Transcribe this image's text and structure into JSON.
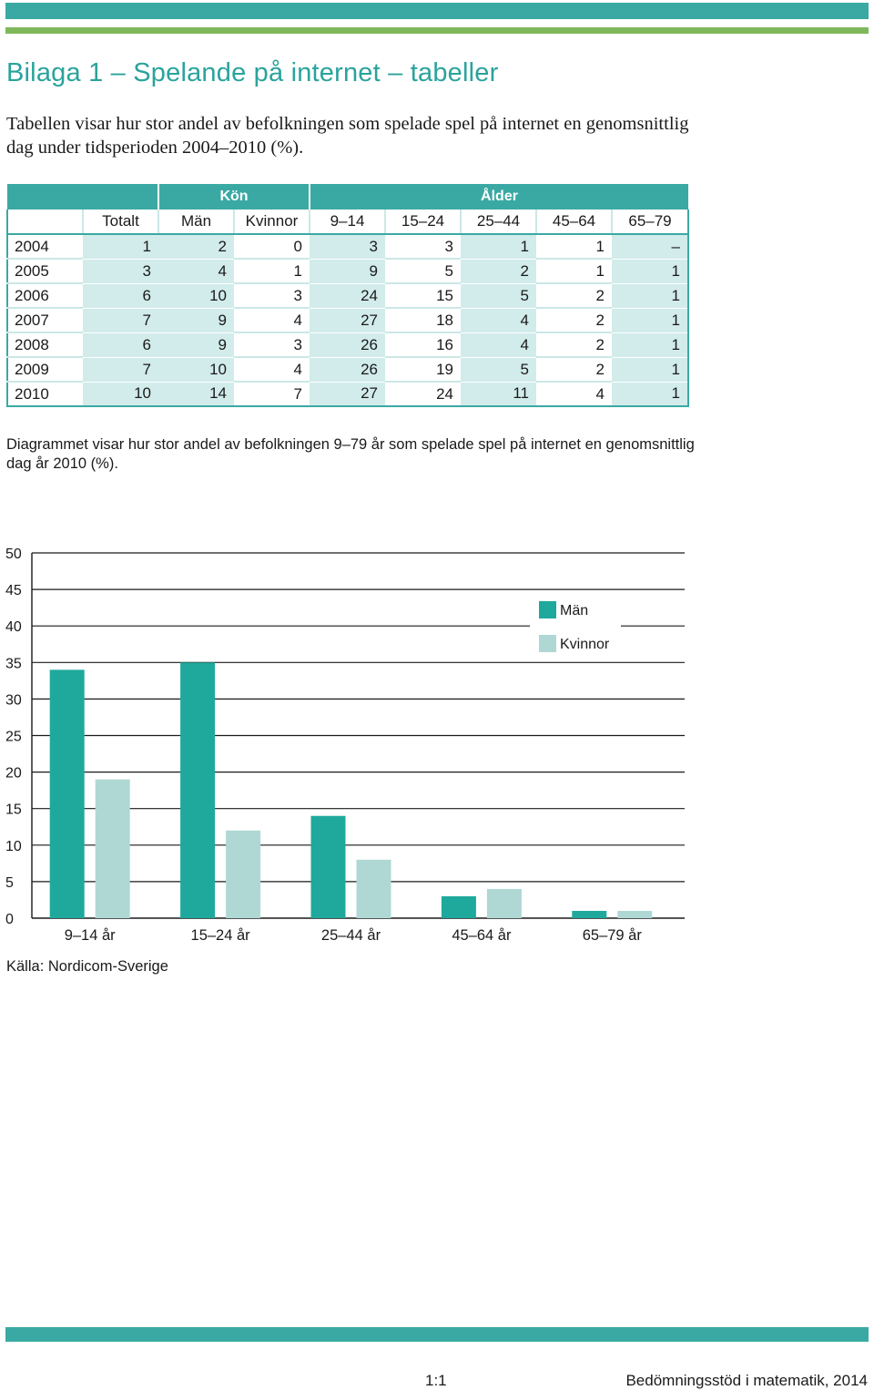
{
  "title": "Bilaga 1 – Spelande på internet – tabeller",
  "intro": "Tabellen visar hur stor andel av befolkningen som spelade spel på internet en genomsnitt­lig dag under tidsperioden 2004–2010 (%).",
  "table": {
    "groups": {
      "kon": "Kön",
      "alder": "Ålder"
    },
    "columns": [
      "Totalt",
      "Män",
      "Kvinnor",
      "9–14",
      "15–24",
      "25–44",
      "45–64",
      "65–79"
    ],
    "rows": [
      {
        "year": "2004",
        "values": [
          "1",
          "2",
          "0",
          "3",
          "3",
          "1",
          "1",
          "–"
        ]
      },
      {
        "year": "2005",
        "values": [
          "3",
          "4",
          "1",
          "9",
          "5",
          "2",
          "1",
          "1"
        ]
      },
      {
        "year": "2006",
        "values": [
          "6",
          "10",
          "3",
          "24",
          "15",
          "5",
          "2",
          "1"
        ]
      },
      {
        "year": "2007",
        "values": [
          "7",
          "9",
          "4",
          "27",
          "18",
          "4",
          "2",
          "1"
        ]
      },
      {
        "year": "2008",
        "values": [
          "6",
          "9",
          "3",
          "26",
          "16",
          "4",
          "2",
          "1"
        ]
      },
      {
        "year": "2009",
        "values": [
          "7",
          "10",
          "4",
          "26",
          "19",
          "5",
          "2",
          "1"
        ]
      },
      {
        "year": "2010",
        "values": [
          "10",
          "14",
          "7",
          "27",
          "24",
          "11",
          "4",
          "1"
        ]
      }
    ]
  },
  "chart_description": "Diagrammet visar hur stor andel av befolkningen 9–79 år som spelade spel på internet en genomsnittlig dag år 2010 (%).",
  "chart_data": {
    "type": "bar",
    "categories": [
      "9–14 år",
      "15–24 år",
      "25–44 år",
      "45–64 år",
      "65–79 år"
    ],
    "series": [
      {
        "name": "Män",
        "values": [
          34,
          35,
          14,
          3,
          1
        ],
        "color": "#1fa99c"
      },
      {
        "name": "Kvinnor",
        "values": [
          19,
          12,
          8,
          4,
          1
        ],
        "color": "#afd8d4"
      }
    ],
    "ylim": [
      0,
      50
    ],
    "yticks": [
      "0",
      "5",
      "10",
      "15",
      "20",
      "25",
      "30",
      "35",
      "40",
      "45",
      "50"
    ],
    "grid": true,
    "legend": "top-right"
  },
  "source": "Källa: Nordicom-Sverige",
  "footer": {
    "page": "1:1",
    "title": "Bedömningsstöd i matematik, 2014"
  }
}
